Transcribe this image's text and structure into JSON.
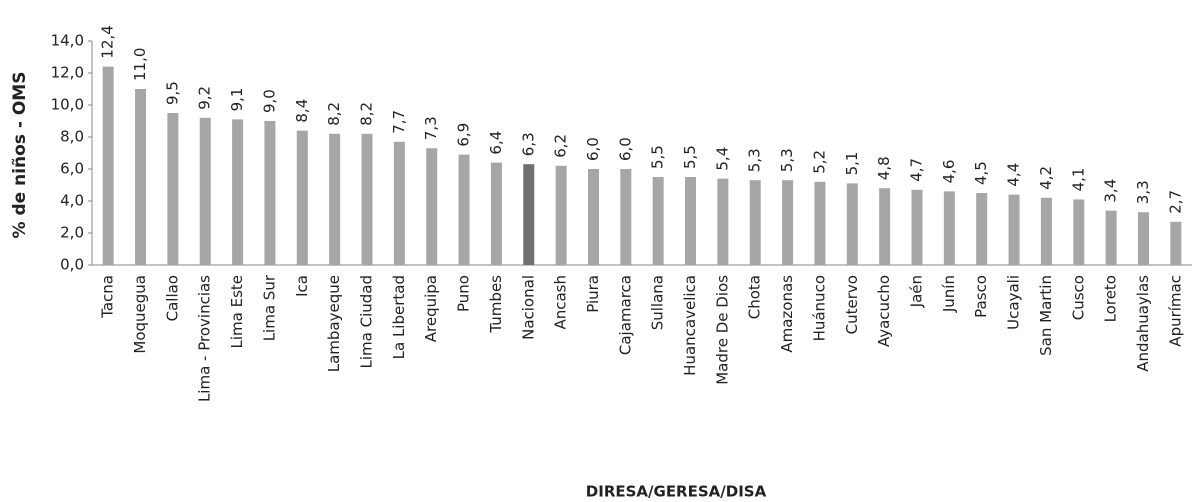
{
  "chart_data": {
    "type": "bar",
    "x_label": "DIRESA/GERESA/DISA",
    "y_label": "% de niños - OMS",
    "categories": [
      "Tacna",
      "Moquegua",
      "Callao",
      "Lima - Provincias",
      "Lima Este",
      "Lima Sur",
      "Ica",
      "Lambayeque",
      "Lima Ciudad",
      "La Libertad",
      "Arequipa",
      "Puno",
      "Tumbes",
      "Nacional",
      "Ancash",
      "Piura",
      "Cajamarca",
      "Sullana",
      "Huancavelica",
      "Madre De Dios",
      "Chota",
      "Amazonas",
      "Huánuco",
      "Cutervo",
      "Ayacucho",
      "Jaén",
      "Junín",
      "Pasco",
      "Ucayali",
      "San Martin",
      "Cusco",
      "Loreto",
      "Andahuaylas",
      "Apurímac"
    ],
    "values": [
      12.4,
      11.0,
      9.5,
      9.2,
      9.1,
      9.0,
      8.4,
      8.2,
      8.2,
      7.7,
      7.3,
      6.9,
      6.4,
      6.3,
      6.2,
      6.0,
      6.0,
      5.5,
      5.5,
      5.4,
      5.3,
      5.3,
      5.2,
      5.1,
      4.8,
      4.7,
      4.6,
      4.5,
      4.4,
      4.2,
      4.1,
      3.4,
      3.3,
      2.7
    ],
    "value_labels": [
      "12,4",
      "11,0",
      "9,5",
      "9,2",
      "9,1",
      "9,0",
      "8,4",
      "8,2",
      "8,2",
      "7,7",
      "7,3",
      "6,9",
      "6,4",
      "6,3",
      "6,2",
      "6,0",
      "6,0",
      "5,5",
      "5,5",
      "5,4",
      "5,3",
      "5,3",
      "5,2",
      "5,1",
      "4,8",
      "4,7",
      "4,6",
      "4,5",
      "4,4",
      "4,2",
      "4,1",
      "3,4",
      "3,3",
      "2,7"
    ],
    "colors": [
      "#a6a6a6",
      "#a6a6a6",
      "#a6a6a6",
      "#a6a6a6",
      "#a6a6a6",
      "#a6a6a6",
      "#a6a6a6",
      "#a6a6a6",
      "#a6a6a6",
      "#a6a6a6",
      "#a6a6a6",
      "#a6a6a6",
      "#a6a6a6",
      "#6f6f6f",
      "#a6a6a6",
      "#a6a6a6",
      "#a6a6a6",
      "#a6a6a6",
      "#a6a6a6",
      "#a6a6a6",
      "#a6a6a6",
      "#a6a6a6",
      "#a6a6a6",
      "#a6a6a6",
      "#a6a6a6",
      "#a6a6a6",
      "#a6a6a6",
      "#a6a6a6",
      "#a6a6a6",
      "#a6a6a6",
      "#a6a6a6",
      "#a6a6a6",
      "#a6a6a6",
      "#a6a6a6"
    ],
    "ylim": [
      0,
      14
    ],
    "yticks": [
      {
        "value": 0,
        "label": "0,0"
      },
      {
        "value": 2,
        "label": "2,0"
      },
      {
        "value": 4,
        "label": "4,0"
      },
      {
        "value": 6,
        "label": "6,0"
      },
      {
        "value": 8,
        "label": "8,0"
      },
      {
        "value": 10,
        "label": "10,0"
      },
      {
        "value": 12,
        "label": "12,0"
      },
      {
        "value": 14,
        "label": "14,0"
      }
    ],
    "grid": false
  }
}
